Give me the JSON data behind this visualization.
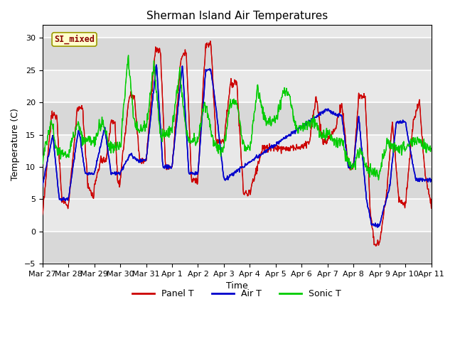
{
  "title": "Sherman Island Air Temperatures",
  "xlabel": "Time",
  "ylabel": "Temperature (C)",
  "ylim": [
    -5,
    32
  ],
  "yticks": [
    -5,
    0,
    5,
    10,
    15,
    20,
    25,
    30
  ],
  "xlabels": [
    "Mar 27",
    "Mar 28",
    "Mar 29",
    "Mar 30",
    "Mar 31",
    "Apr 1",
    "Apr 2",
    "Apr 3",
    "Apr 4",
    "Apr 5",
    "Apr 6",
    "Apr 7",
    "Apr 8",
    "Apr 9",
    "Apr 10",
    "Apr 11"
  ],
  "annotation_text": "SI_mixed",
  "bg_color": "#e8e8e8",
  "plot_bg": "#dcdcdc",
  "line_colors": {
    "panel": "#cc0000",
    "air": "#0000cc",
    "sonic": "#00cc00"
  },
  "legend_labels": [
    "Panel T",
    "Air T",
    "Sonic T"
  ],
  "title_fontsize": 11,
  "tick_fontsize": 8,
  "label_fontsize": 9
}
